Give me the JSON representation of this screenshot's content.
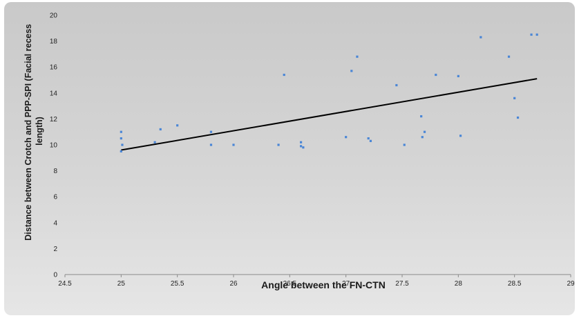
{
  "chart_data": {
    "type": "scatter",
    "title": "",
    "xlabel": "Angle between the FN-CTN",
    "ylabel": "Distance between Crotch and PPP-SPI (Facial recess length)",
    "xlim": [
      24.5,
      29
    ],
    "ylim": [
      0,
      20
    ],
    "xticks": [
      24.5,
      25,
      25.5,
      26,
      26.5,
      27,
      27.5,
      28,
      28.5,
      29
    ],
    "yticks": [
      0,
      2,
      4,
      6,
      8,
      10,
      12,
      14,
      16,
      18,
      20
    ],
    "grid": false,
    "legend": "none",
    "series": [
      {
        "color": "#4a86d6",
        "x": [
          25.0,
          25.0,
          25.01,
          25.0,
          25.3,
          25.35,
          25.5,
          25.8,
          25.8,
          26.0,
          26.4,
          26.45,
          26.6,
          26.6,
          26.62,
          27.0,
          27.05,
          27.1,
          27.2,
          27.22,
          27.45,
          27.52,
          27.67,
          27.68,
          27.7,
          27.8,
          28.0,
          28.02,
          28.2,
          28.45,
          28.5,
          28.53,
          28.65,
          28.7
        ],
        "y": [
          11.0,
          10.5,
          10.0,
          9.5,
          10.2,
          11.2,
          11.5,
          11.0,
          10.0,
          10.0,
          10.0,
          15.4,
          10.2,
          9.9,
          9.8,
          10.6,
          15.7,
          16.8,
          10.5,
          10.3,
          14.6,
          10.0,
          12.2,
          10.6,
          11.0,
          15.4,
          15.3,
          10.7,
          18.3,
          16.8,
          13.6,
          12.1,
          18.5,
          18.5
        ]
      }
    ],
    "trendline": {
      "x": [
        25.0,
        28.7
      ],
      "y": [
        9.6,
        15.1
      ],
      "color": "#000000"
    }
  }
}
